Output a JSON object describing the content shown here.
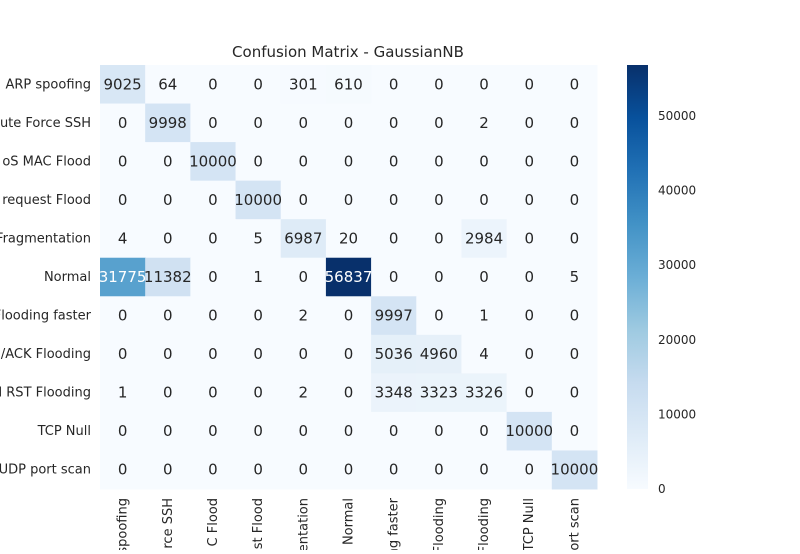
{
  "chart_data": {
    "type": "heatmap",
    "title": "Confusion Matrix - GaussianNB",
    "xlabel": "",
    "ylabel": "",
    "row_labels": [
      "ARP spoofing",
      "ute Force SSH",
      "oS MAC Flood",
      "o request Flood",
      "Fragmentation",
      "Normal",
      "Flooding faster",
      "/ACK Flooding",
      "I RST Flooding",
      "TCP Null",
      "UDP port scan"
    ],
    "col_labels": [
      "spoofing",
      "rce SSH",
      "C Flood",
      "st Flood",
      "entation",
      "Normal",
      "ng faster",
      "Flooding",
      "Flooding",
      "TCP Null",
      "ort scan"
    ],
    "values": [
      [
        9025,
        64,
        0,
        0,
        301,
        610,
        0,
        0,
        0,
        0,
        0
      ],
      [
        0,
        9998,
        0,
        0,
        0,
        0,
        0,
        0,
        2,
        0,
        0
      ],
      [
        0,
        0,
        10000,
        0,
        0,
        0,
        0,
        0,
        0,
        0,
        0
      ],
      [
        0,
        0,
        0,
        10000,
        0,
        0,
        0,
        0,
        0,
        0,
        0
      ],
      [
        4,
        0,
        0,
        5,
        6987,
        20,
        0,
        0,
        2984,
        0,
        0
      ],
      [
        31775,
        11382,
        0,
        1,
        0,
        56837,
        0,
        0,
        0,
        0,
        5
      ],
      [
        0,
        0,
        0,
        0,
        2,
        0,
        9997,
        0,
        1,
        0,
        0
      ],
      [
        0,
        0,
        0,
        0,
        0,
        0,
        5036,
        4960,
        4,
        0,
        0
      ],
      [
        1,
        0,
        0,
        0,
        2,
        0,
        3348,
        3323,
        3326,
        0,
        0
      ],
      [
        0,
        0,
        0,
        0,
        0,
        0,
        0,
        0,
        0,
        10000,
        0
      ],
      [
        0,
        0,
        0,
        0,
        0,
        0,
        0,
        0,
        0,
        0,
        10000
      ]
    ],
    "colorbar": {
      "min": 0,
      "max": 56837,
      "ticks": [
        0,
        10000,
        20000,
        30000,
        40000,
        50000
      ]
    },
    "colormap": "Blues",
    "colors": {
      "low": "#f7fbff",
      "high": "#08306b",
      "text_dark": "#262626",
      "text_light": "#ffffff"
    },
    "grid": false,
    "legend": "colorbar-right"
  }
}
